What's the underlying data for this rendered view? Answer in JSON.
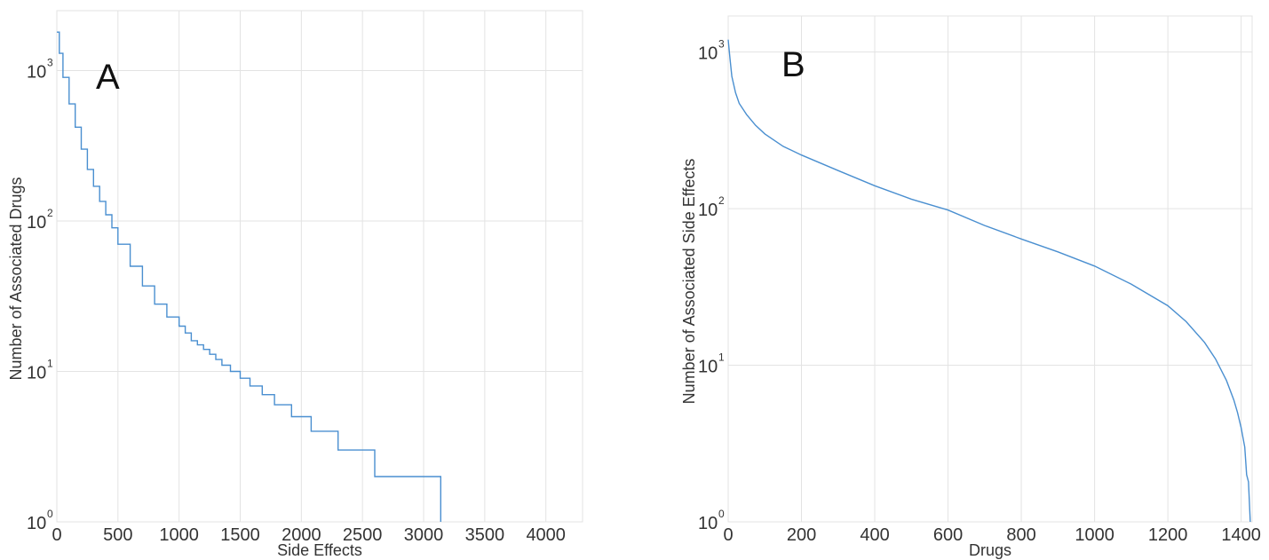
{
  "chart_data": [
    {
      "type": "line",
      "panel_label": "A",
      "xlabel": "Side Effects",
      "ylabel": "Number of Associated Drugs",
      "xlim": [
        0,
        4300
      ],
      "ylim": [
        1,
        2500
      ],
      "yscale": "log",
      "grid": true,
      "x_ticks": [
        0,
        500,
        1000,
        1500,
        2000,
        2500,
        3000,
        3500,
        4000
      ],
      "x_tick_labels": [
        "0",
        "500",
        "1000",
        "1500",
        "2000",
        "2500",
        "3000",
        "3500",
        "4000"
      ],
      "y_ticks": [
        1,
        10,
        100,
        1000
      ],
      "y_tick_labels": [
        {
          "base": "10",
          "exp": "0"
        },
        {
          "base": "10",
          "exp": "1"
        },
        {
          "base": "10",
          "exp": "2"
        },
        {
          "base": "10",
          "exp": "3"
        }
      ],
      "step": true,
      "series": [
        {
          "x": [
            0,
            20,
            50,
            100,
            150,
            200,
            250,
            300,
            350,
            400,
            450,
            500,
            600,
            700,
            800,
            900,
            1000,
            1050,
            1100,
            1150,
            1200,
            1250,
            1300,
            1350,
            1420,
            1500,
            1580,
            1680,
            1780,
            1920,
            2080,
            2300,
            2600,
            3140,
            3140
          ],
          "y": [
            1800,
            1300,
            900,
            600,
            420,
            300,
            220,
            170,
            135,
            110,
            90,
            70,
            50,
            37,
            28,
            23,
            20,
            18,
            16,
            15,
            14,
            13,
            12,
            11,
            10,
            9,
            8,
            7,
            6,
            5,
            4,
            3,
            2,
            2,
            1
          ]
        }
      ]
    },
    {
      "type": "line",
      "panel_label": "B",
      "xlabel": "Drugs",
      "ylabel": "Number of Associated Side Effects",
      "xlim": [
        0,
        1430
      ],
      "ylim": [
        1,
        1700
      ],
      "yscale": "log",
      "grid": true,
      "x_ticks": [
        0,
        200,
        400,
        600,
        800,
        1000,
        1200,
        1400
      ],
      "x_tick_labels": [
        "0",
        "200",
        "400",
        "600",
        "800",
        "1000",
        "1200",
        "1400"
      ],
      "y_ticks": [
        1,
        10,
        100,
        1000
      ],
      "y_tick_labels": [
        {
          "base": "10",
          "exp": "0"
        },
        {
          "base": "10",
          "exp": "1"
        },
        {
          "base": "10",
          "exp": "2"
        },
        {
          "base": "10",
          "exp": "3"
        }
      ],
      "step": false,
      "series": [
        {
          "x": [
            0,
            5,
            10,
            20,
            30,
            50,
            75,
            100,
            150,
            200,
            300,
            400,
            500,
            600,
            700,
            800,
            900,
            1000,
            1100,
            1200,
            1250,
            1300,
            1330,
            1360,
            1380,
            1390,
            1400,
            1410,
            1415,
            1420,
            1425
          ],
          "y": [
            1200,
            900,
            700,
            550,
            470,
            400,
            340,
            300,
            250,
            220,
            175,
            140,
            115,
            98,
            78,
            64,
            53,
            43,
            33,
            24,
            19,
            14,
            11,
            8,
            6,
            5,
            4,
            3,
            2,
            1.8,
            1
          ]
        }
      ]
    }
  ]
}
